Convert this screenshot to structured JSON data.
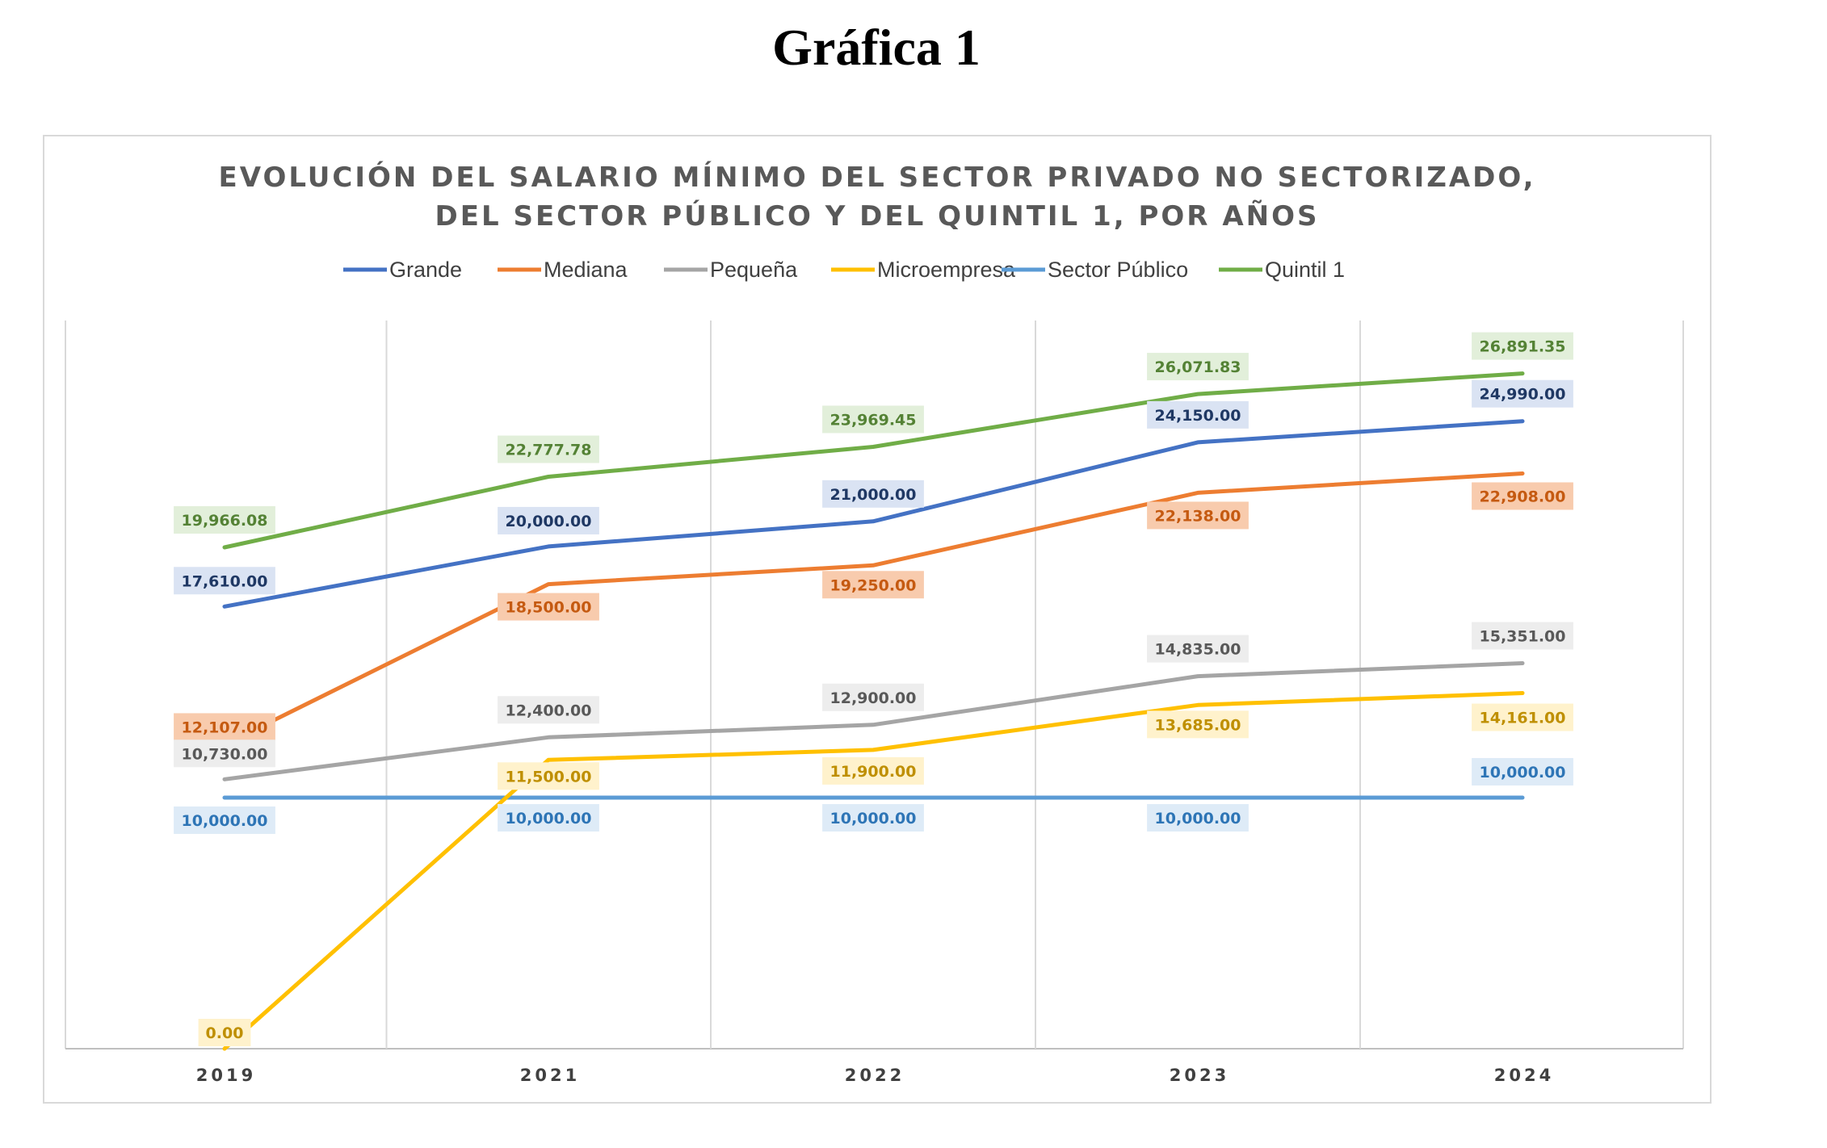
{
  "page": {
    "heading": "Gráfica 1"
  },
  "chart_data": {
    "type": "line",
    "title_lines": [
      "EVOLUCIÓN DEL SALARIO MÍNIMO DEL SECTOR PRIVADO NO SECTORIZADO,",
      "DEL SECTOR PÚBLICO Y DEL QUINTIL 1, POR AÑOS"
    ],
    "categories": [
      "2019",
      "2021",
      "2022",
      "2023",
      "2024"
    ],
    "ylim": [
      0,
      29000
    ],
    "grid": {
      "vertical": true,
      "horizontal": false
    },
    "legend_position": "top",
    "series": [
      {
        "name": "Grande",
        "color": "#4472c4",
        "values": [
          17610,
          20000,
          21000,
          24150,
          24990
        ],
        "labels": [
          "17,610.00",
          "20,000.00",
          "21,000.00",
          "24,150.00",
          "24,990.00"
        ],
        "label_text_color": "#1f3864",
        "label_bg": "#dae3f3"
      },
      {
        "name": "Mediana",
        "color": "#ed7d31",
        "values": [
          12107,
          18500,
          19250,
          22138,
          22908
        ],
        "labels": [
          "12,107.00",
          "18,500.00",
          "19,250.00",
          "22,138.00",
          "22,908.00"
        ],
        "label_text_color": "#c55a11",
        "label_bg": "#f8cbad"
      },
      {
        "name": "Pequeña",
        "color": "#a5a5a5",
        "values": [
          10730,
          12400,
          12900,
          14835,
          15351
        ],
        "labels": [
          "10,730.00",
          "12,400.00",
          "12,900.00",
          "14,835.00",
          "15,351.00"
        ],
        "label_text_color": "#595959",
        "label_bg": "#ededed"
      },
      {
        "name": "Microempresa",
        "color": "#ffc000",
        "values": [
          0,
          11500,
          11900,
          13685,
          14161
        ],
        "labels": [
          "0.00",
          "11,500.00",
          "11,900.00",
          "13,685.00",
          "14,161.00"
        ],
        "label_text_color": "#bf8f00",
        "label_bg": "#fff2cc"
      },
      {
        "name": "Sector Público",
        "color": "#5b9bd5",
        "values": [
          10000,
          10000,
          10000,
          10000,
          10000
        ],
        "labels": [
          "10,000.00",
          "10,000.00",
          "10,000.00",
          "10,000.00",
          "10,000.00"
        ],
        "label_text_color": "#2e75b6",
        "label_bg": "#deebf7"
      },
      {
        "name": "Quintil 1",
        "color": "#70ad47",
        "values": [
          19966.08,
          22777.78,
          23969.45,
          26071.83,
          26891.35
        ],
        "labels": [
          "19,966.08",
          "22,777.78",
          "23,969.45",
          "26,071.83",
          "26,891.35"
        ],
        "label_text_color": "#548235",
        "label_bg": "#e2efda"
      }
    ]
  }
}
